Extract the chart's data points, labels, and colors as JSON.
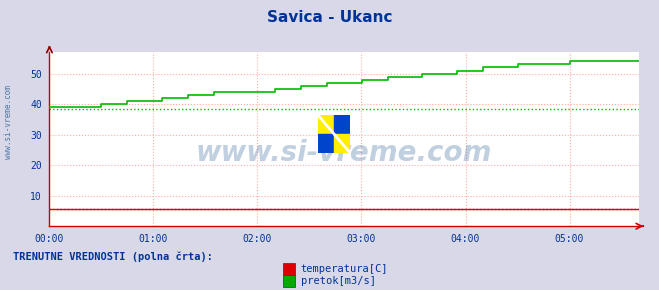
{
  "title": "Savica - Ukanc",
  "title_color": "#003399",
  "title_fontsize": 11,
  "bg_color": "#d8d8e8",
  "plot_bg_color": "#ffffff",
  "grid_color": "#ffaaaa",
  "xlabel": "",
  "ylabel": "",
  "ylim": [
    0,
    57
  ],
  "yticks": [
    10,
    20,
    30,
    40,
    50
  ],
  "xtick_labels": [
    "00:00",
    "01:00",
    "02:00",
    "03:00",
    "04:00",
    "05:00"
  ],
  "temp_color": "#dd0000",
  "flow_color": "#00bb00",
  "avg_flow_color": "#00bb00",
  "avg_temp_color": "#dd0000",
  "avg_flow_value": 38.5,
  "avg_temp_value": 5.5,
  "legend_label1": "temperatura[C]",
  "legend_label2": "pretok[m3/s]",
  "bottom_text": "TRENUTNE VREDNOSTI (polna črta):",
  "watermark": "www.si-vreme.com",
  "left_text": "www.si-vreme.com",
  "flow_steps": [
    39,
    39,
    39,
    39,
    39,
    39,
    40,
    40,
    40,
    41,
    41,
    41,
    41,
    42,
    42,
    42,
    43,
    43,
    43,
    44,
    44,
    44,
    44,
    44,
    44,
    44,
    45,
    45,
    45,
    46,
    46,
    46,
    47,
    47,
    47,
    47,
    48,
    48,
    48,
    49,
    49,
    49,
    49,
    50,
    50,
    50,
    50,
    51,
    51,
    51,
    52,
    52,
    52,
    52,
    53,
    53,
    53,
    53,
    53,
    53,
    54,
    54,
    54,
    54,
    54,
    54,
    54,
    54,
    54
  ],
  "n_points": 69,
  "temp_value": 5.5
}
